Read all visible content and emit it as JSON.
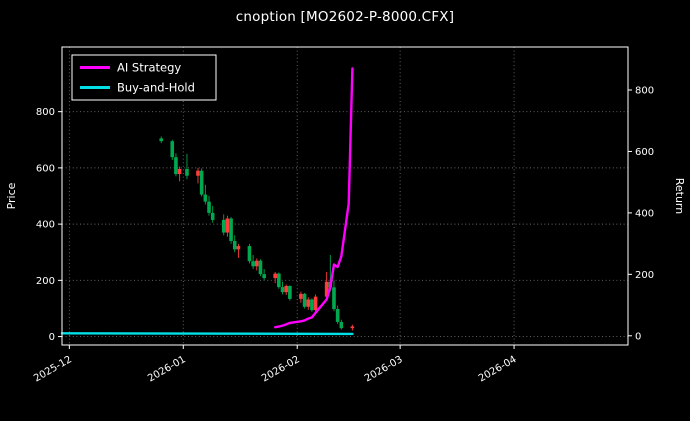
{
  "title": "cnoption [MO2602-P-8000.CFX]",
  "colors": {
    "background": "#000000",
    "text": "#ffffff",
    "grid": "#6e6e6e",
    "border": "#ffffff",
    "ai_strategy": "#ff00ff",
    "buy_and_hold": "#00e0e6",
    "candle_up": "#ff3b3b",
    "candle_down": "#00a94f"
  },
  "legend": {
    "items": [
      {
        "label": "AI Strategy",
        "color": "#ff00ff"
      },
      {
        "label": "Buy-and-Hold",
        "color": "#00e0e6"
      }
    ]
  },
  "chart_data": {
    "type": "candlestick+line",
    "title": "cnoption [MO2602-P-8000.CFX]",
    "grid": true,
    "legend_position": "upper-left",
    "x_axis": {
      "range": [
        "2025-11-29",
        "2026-05-02"
      ],
      "ticks": [
        {
          "label": "2025-12",
          "date": "2025-12-01"
        },
        {
          "label": "2026-01",
          "date": "2026-01-01"
        },
        {
          "label": "2026-02",
          "date": "2026-02-01"
        },
        {
          "label": "2026-03",
          "date": "2026-03-01"
        },
        {
          "label": "2026-04",
          "date": "2026-04-01"
        }
      ]
    },
    "left_axis": {
      "label": "Price",
      "range": [
        -30,
        1030
      ],
      "ticks": [
        0,
        200,
        400,
        600,
        800
      ]
    },
    "right_axis": {
      "label": "Return",
      "range": [
        -30,
        940
      ],
      "ticks": [
        0,
        200,
        400,
        600,
        800
      ]
    },
    "candlestick": {
      "name": "option-price-ohlc",
      "axis": "left",
      "up_color": "#ff3b3b",
      "down_color": "#00a94f",
      "columns": [
        "date",
        "open",
        "high",
        "low",
        "close"
      ],
      "rows": [
        [
          "2025-12-26",
          705,
          712,
          688,
          695
        ],
        [
          "2025-12-29",
          695,
          700,
          628,
          638
        ],
        [
          "2025-12-30",
          638,
          652,
          570,
          578
        ],
        [
          "2025-12-31",
          578,
          605,
          552,
          596
        ],
        [
          "2026-01-02",
          596,
          650,
          560,
          572
        ],
        [
          "2026-01-05",
          572,
          600,
          545,
          590
        ],
        [
          "2026-01-06",
          590,
          598,
          498,
          505
        ],
        [
          "2026-01-07",
          505,
          540,
          470,
          480
        ],
        [
          "2026-01-08",
          480,
          500,
          430,
          440
        ],
        [
          "2026-01-09",
          440,
          465,
          405,
          415
        ],
        [
          "2026-01-12",
          415,
          435,
          360,
          370
        ],
        [
          "2026-01-13",
          370,
          430,
          355,
          420
        ],
        [
          "2026-01-14",
          420,
          425,
          330,
          340
        ],
        [
          "2026-01-15",
          340,
          360,
          300,
          310
        ],
        [
          "2026-01-16",
          310,
          330,
          280,
          322
        ],
        [
          "2026-01-19",
          322,
          330,
          260,
          268
        ],
        [
          "2026-01-20",
          268,
          290,
          240,
          250
        ],
        [
          "2026-01-21",
          250,
          278,
          235,
          270
        ],
        [
          "2026-01-22",
          270,
          275,
          215,
          222
        ],
        [
          "2026-01-23",
          222,
          240,
          200,
          208
        ],
        [
          "2026-01-26",
          208,
          230,
          190,
          224
        ],
        [
          "2026-01-27",
          224,
          228,
          170,
          176
        ],
        [
          "2026-01-28",
          176,
          195,
          150,
          158
        ],
        [
          "2026-01-29",
          158,
          185,
          148,
          180
        ],
        [
          "2026-01-30",
          180,
          182,
          128,
          134
        ],
        [
          "2026-02-02",
          134,
          160,
          120,
          152
        ],
        [
          "2026-02-03",
          152,
          155,
          100,
          106
        ],
        [
          "2026-02-04",
          106,
          140,
          95,
          132
        ],
        [
          "2026-02-05",
          132,
          136,
          88,
          94
        ],
        [
          "2026-02-06",
          94,
          150,
          85,
          142
        ],
        [
          "2026-02-09",
          142,
          230,
          130,
          195
        ],
        [
          "2026-02-10",
          195,
          290,
          160,
          175
        ],
        [
          "2026-02-11",
          175,
          200,
          90,
          98
        ],
        [
          "2026-02-12",
          98,
          110,
          45,
          52
        ],
        [
          "2026-02-13",
          52,
          60,
          25,
          30
        ],
        [
          "2026-02-16",
          30,
          42,
          22,
          36
        ]
      ]
    },
    "series": [
      {
        "name": "AI Strategy",
        "axis": "right",
        "color": "#ff00ff",
        "width": 2.4,
        "points": [
          [
            "2026-01-26",
            28
          ],
          [
            "2026-01-27",
            30
          ],
          [
            "2026-01-28",
            33
          ],
          [
            "2026-01-29",
            37
          ],
          [
            "2026-01-30",
            42
          ],
          [
            "2026-02-02",
            47
          ],
          [
            "2026-02-03",
            50
          ],
          [
            "2026-02-04",
            56
          ],
          [
            "2026-02-05",
            60
          ],
          [
            "2026-02-06",
            75
          ],
          [
            "2026-02-09",
            118
          ],
          [
            "2026-02-10",
            158
          ],
          [
            "2026-02-11",
            232
          ],
          [
            "2026-02-12",
            224
          ],
          [
            "2026-02-13",
            258
          ],
          [
            "2026-02-15",
            430
          ],
          [
            "2026-02-16",
            870
          ]
        ]
      },
      {
        "name": "Buy-and-Hold",
        "axis": "right",
        "color": "#00e0e6",
        "width": 2.4,
        "points": [
          [
            "2025-11-29",
            8
          ],
          [
            "2026-02-16",
            6
          ]
        ]
      }
    ]
  }
}
